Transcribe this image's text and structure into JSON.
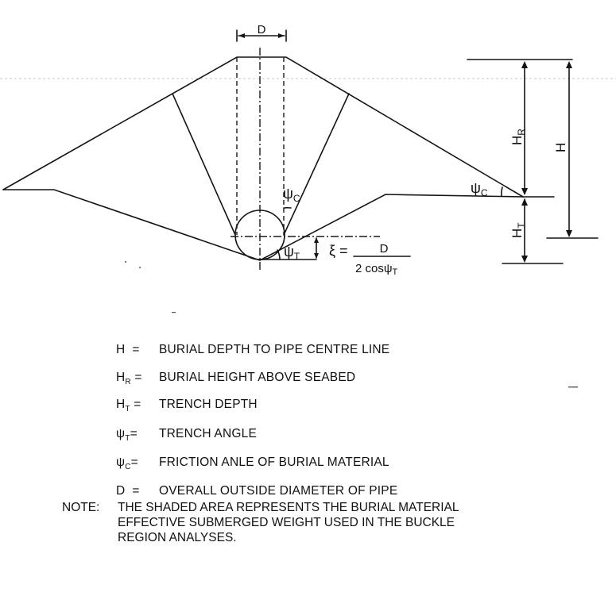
{
  "diagram": {
    "labels": {
      "d_top": "D",
      "h_r": "H",
      "h_r_sub": "R",
      "h": "H",
      "h_t": "H",
      "h_t_sub": "T",
      "psi_c_inner": "ψ",
      "psi_c_inner_sub": "C",
      "psi_c_right": "ψ",
      "psi_c_right_sub": "C",
      "psi_t": "ψ",
      "psi_t_sub": "T",
      "xi": "ξ =",
      "xi_num": "D",
      "xi_den": "2 cosψ",
      "xi_den_sub": "T"
    }
  },
  "legend": [
    {
      "symbol": "H",
      "sub": "",
      "eq": "=",
      "text": "BURIAL DEPTH TO PIPE CENTRE LINE"
    },
    {
      "symbol": "H",
      "sub": "R",
      "eq": "=",
      "text": "BURIAL HEIGHT ABOVE SEABED"
    },
    {
      "symbol": "H",
      "sub": "T",
      "eq": "=",
      "text": "TRENCH DEPTH"
    },
    {
      "symbol": "ψ",
      "sub": "T",
      "eq": "=",
      "text": "TRENCH ANGLE"
    },
    {
      "symbol": "ψ",
      "sub": "C",
      "eq": "=",
      "text": "FRICTION ANLE OF BURIAL MATERIAL"
    },
    {
      "symbol": "D",
      "sub": "",
      "eq": "=",
      "text": "OVERALL OUTSIDE DIAMETER OF PIPE"
    }
  ],
  "note": {
    "label": "NOTE:",
    "lines": [
      "THE SHADED AREA REPRESENTS THE BURIAL MATERIAL",
      "EFFECTIVE SUBMERGED WEIGHT USED IN THE BUCKLE",
      "REGION ANALYSES."
    ]
  }
}
